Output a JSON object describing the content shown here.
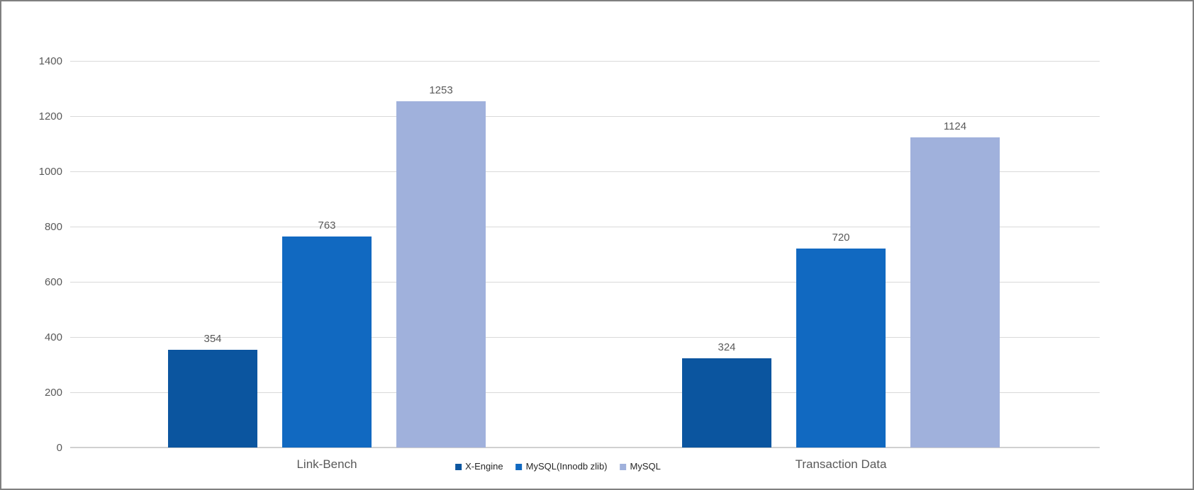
{
  "chart_data": {
    "type": "bar",
    "title": "",
    "xlabel": "",
    "ylabel": "",
    "categories": [
      "Link-Bench",
      "Transaction Data"
    ],
    "series": [
      {
        "name": "X-Engine",
        "color": "#0B559F",
        "values": [
          354,
          324
        ]
      },
      {
        "name": "MySQL(Innodb zlib)",
        "color": "#1169C1",
        "values": [
          763,
          720
        ]
      },
      {
        "name": "MySQL",
        "color": "#A0B1DC",
        "values": [
          1253,
          1124
        ]
      }
    ],
    "ylim": [
      0,
      1400
    ],
    "ytick_step": 200,
    "ytick_labels": [
      "0",
      "200",
      "400",
      "600",
      "800",
      "1000",
      "1200",
      "1400"
    ],
    "grid": true,
    "value_labels": true,
    "legend_position": "bottom-center"
  },
  "colors": {
    "background": "#FFFFFF",
    "border": "#808080",
    "gridline": "#D9D9D9",
    "axis_text": "#595959",
    "legend_text": "#262626"
  }
}
